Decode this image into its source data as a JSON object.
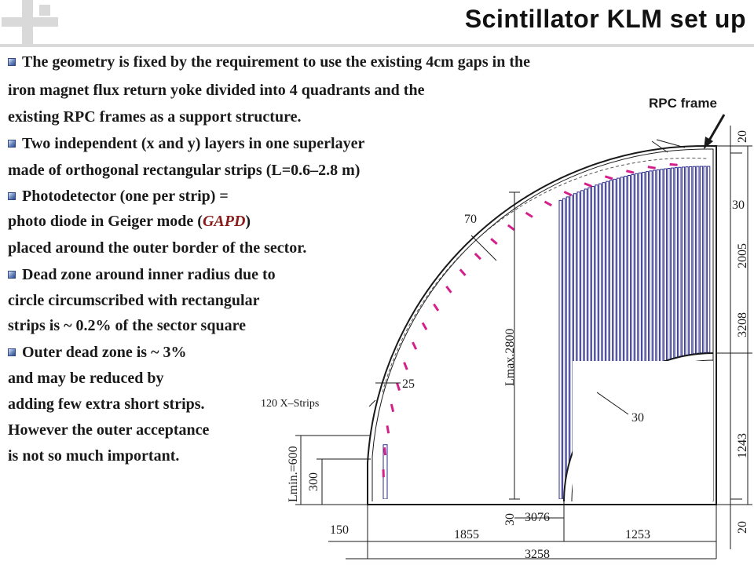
{
  "title": "Scintillator KLM set up",
  "bullets": [
    {
      "lines": [
        "The geometry is fixed by the requirement to use the existing 4cm gaps in the",
        "iron magnet flux return yoke divided into 4 quadrants and the",
        "existing RPC frames as a support structure."
      ]
    },
    {
      "lines": [
        "Two independent (x and y) layers in one superlayer",
        "made of orthogonal rectangular strips (L=0.6–2.8 m)"
      ]
    },
    {
      "lines": [
        "Photodetector (one per strip) =",
        "placed around the outer border of the sector."
      ],
      "gapd_line": {
        "before": "photo diode in Geiger mode (",
        "emphasis": "GAPD",
        "after": ")"
      }
    },
    {
      "lines": [
        "Dead zone around inner radius due to",
        "circle circumscribed with rectangular",
        "strips is ~ 0.2% of the sector square"
      ]
    },
    {
      "lines": [
        "Outer dead zone is ~ 3%",
        "and may be reduced by",
        "adding few extra short strips.",
        "However the outer acceptance",
        "is not so much important."
      ]
    }
  ],
  "diagram": {
    "rpc_frame_label": "RPC frame",
    "strips_label": "120 X–Strips",
    "dims": {
      "d20_top": "20",
      "d30_right": "30",
      "d2005": "2005",
      "d3208": "3208",
      "d1243": "1243",
      "d20_bottom": "20",
      "d70": "70",
      "d25": "25",
      "d30_inner": "30",
      "d30_bottom": "30",
      "lmax": "Lmax.2800",
      "lmin": "Lmin.=600",
      "d300": "300",
      "d150": "150",
      "d3076": "3076",
      "d1855": "1855",
      "d1253": "1253",
      "d3258": "3258"
    },
    "colors": {
      "strips": "#2b2b8c",
      "photodetectors": "#d4208a",
      "lines": "#1a1a1a"
    }
  }
}
